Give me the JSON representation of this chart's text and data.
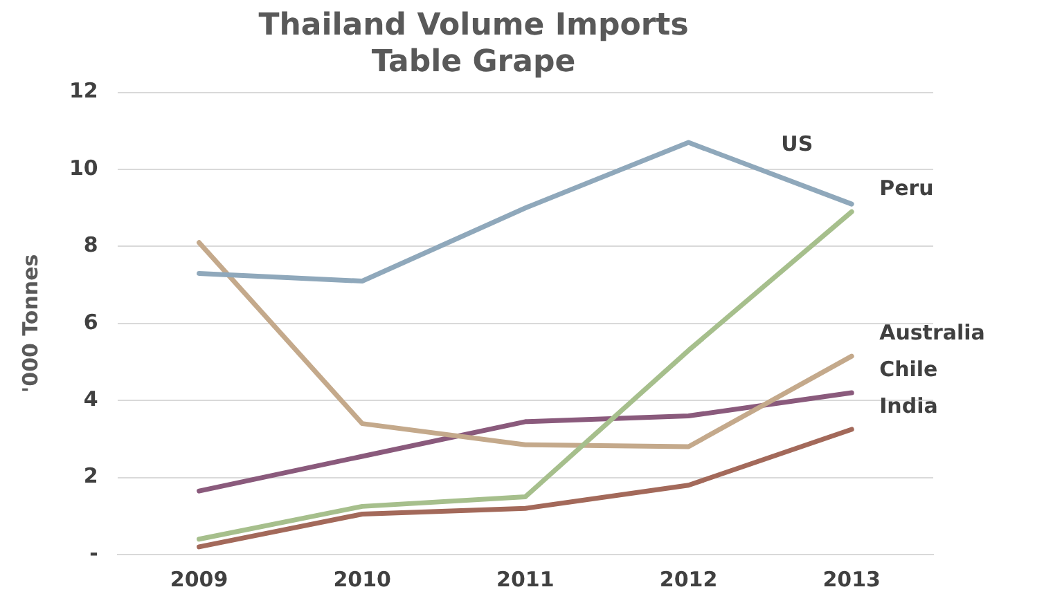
{
  "chart_data": {
    "type": "line",
    "title": [
      "Thailand Volume Imports",
      "Table Grape"
    ],
    "ylabel": "'000 Tonnes",
    "categories": [
      "2009",
      "2010",
      "2011",
      "2012",
      "2013"
    ],
    "series": [
      {
        "name": "US",
        "color": "#8fa8bb",
        "values": [
          7.3,
          7.1,
          9.0,
          10.7,
          9.1
        ]
      },
      {
        "name": "Peru",
        "color": "#a6bf8c",
        "values": [
          0.4,
          1.25,
          1.5,
          5.3,
          8.9
        ]
      },
      {
        "name": "Australia",
        "color": "#c4a98b",
        "values": [
          8.1,
          3.4,
          2.85,
          2.8,
          5.15
        ]
      },
      {
        "name": "Chile",
        "color": "#8a5a7c",
        "values": [
          1.65,
          2.55,
          3.45,
          3.6,
          4.2
        ]
      },
      {
        "name": "India",
        "color": "#a3695a",
        "values": [
          0.2,
          1.05,
          1.2,
          1.8,
          3.25
        ]
      }
    ],
    "ylim": [
      0,
      12
    ],
    "yticks": [
      {
        "value": 0,
        "label": "-"
      },
      2,
      4,
      6,
      8,
      10,
      12
    ],
    "grid": "y",
    "legend": false,
    "marker": "none",
    "line_style": "solid"
  }
}
